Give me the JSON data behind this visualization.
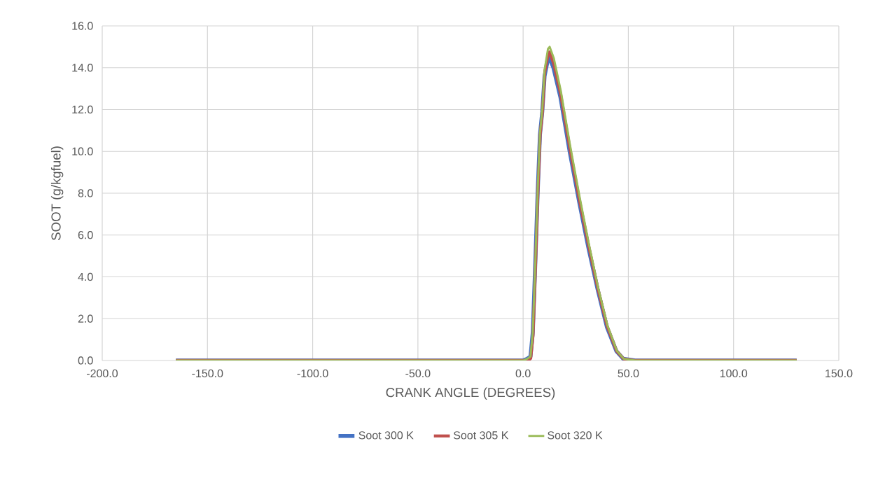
{
  "chart_data": {
    "type": "line",
    "xlabel": "CRANK ANGLE (DEGREES)",
    "ylabel": "SOOT (g/kgfuel)",
    "xlim": [
      -200,
      150
    ],
    "ylim": [
      0,
      16
    ],
    "xticks": [
      {
        "value": -200,
        "label": "-200.0"
      },
      {
        "value": -150,
        "label": "-150.0"
      },
      {
        "value": -100,
        "label": "-100.0"
      },
      {
        "value": -50,
        "label": "-50.0"
      },
      {
        "value": 0,
        "label": "0.0"
      },
      {
        "value": 50,
        "label": "50.0"
      },
      {
        "value": 100,
        "label": "100.0"
      },
      {
        "value": 150,
        "label": "150.0"
      }
    ],
    "yticks": [
      {
        "value": 0,
        "label": "0.0"
      },
      {
        "value": 2,
        "label": "2.0"
      },
      {
        "value": 4,
        "label": "4.0"
      },
      {
        "value": 6,
        "label": "6.0"
      },
      {
        "value": 8,
        "label": "8.0"
      },
      {
        "value": 10,
        "label": "10.0"
      },
      {
        "value": 12,
        "label": "12.0"
      },
      {
        "value": 14,
        "label": "14.0"
      },
      {
        "value": 16,
        "label": "16.0"
      }
    ],
    "grid": true,
    "legend": "bottom",
    "marker": "none",
    "line_style": "solid",
    "series": [
      {
        "name": "Soot 300 K",
        "color": "#4472c4",
        "x": [
          -165,
          0,
          1.9,
          3.5,
          4.6,
          5.8,
          6.9,
          8.0,
          9.1,
          10.2,
          11.8,
          12.4,
          14.4,
          17.7,
          22.1,
          26.6,
          31.0,
          35.4,
          39.8,
          44.3,
          47.6,
          53.3,
          130
        ],
        "values": [
          0,
          0,
          0.08,
          0.19,
          1.36,
          4.7,
          8.0,
          10.8,
          11.9,
          13.6,
          14.4,
          14.5,
          14.0,
          12.6,
          10.0,
          7.6,
          5.4,
          3.4,
          1.6,
          0.45,
          0.08,
          0,
          0
        ]
      },
      {
        "name": "Soot 305 K",
        "color": "#c0504d",
        "x": [
          -165,
          0,
          2.5,
          3.6,
          4.7,
          5.9,
          7.0,
          8.1,
          9.2,
          10.3,
          11.8,
          12.5,
          14.5,
          17.8,
          22.2,
          26.7,
          31.1,
          35.5,
          39.9,
          44.4,
          47.7,
          53.3,
          130
        ],
        "values": [
          0,
          0,
          0,
          0.1,
          1.2,
          4.6,
          8.0,
          10.8,
          11.9,
          13.8,
          14.6,
          14.75,
          14.2,
          12.75,
          10.15,
          7.7,
          5.5,
          3.45,
          1.65,
          0.46,
          0.08,
          0,
          0
        ]
      },
      {
        "name": "Soot 320 K",
        "color": "#9bbb59",
        "x": [
          -165,
          0,
          1.9,
          3.5,
          4.6,
          5.8,
          6.9,
          8.0,
          9.1,
          10.2,
          11.8,
          12.6,
          14.6,
          17.9,
          22.3,
          26.8,
          31.2,
          35.6,
          40.0,
          44.5,
          47.8,
          53.3,
          130
        ],
        "values": [
          0,
          0,
          0.08,
          0.19,
          1.36,
          4.7,
          8.07,
          10.86,
          11.98,
          13.9,
          14.9,
          15.0,
          14.45,
          12.9,
          10.3,
          7.85,
          5.6,
          3.5,
          1.7,
          0.47,
          0.08,
          0,
          0
        ]
      }
    ]
  }
}
